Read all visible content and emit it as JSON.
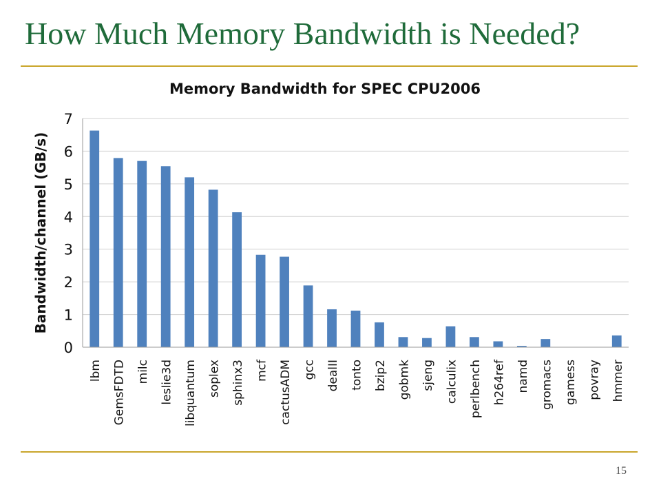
{
  "slide": {
    "title": "How Much Memory Bandwidth is Needed?",
    "page_number": "15"
  },
  "colors": {
    "title": "#1f6b3a",
    "rule": "#c9a52a",
    "bar": "#4f81bd",
    "grid": "#d0d0d0"
  },
  "chart_data": {
    "type": "bar",
    "title": "Memory Bandwidth for SPEC CPU2006",
    "xlabel": "",
    "ylabel": "Bandwidth/channel (GB/s)",
    "ylim": [
      0,
      7
    ],
    "yticks": [
      0,
      1,
      2,
      3,
      4,
      5,
      6,
      7
    ],
    "grid": true,
    "categories": [
      "lbm",
      "GemsFDTD",
      "milc",
      "leslie3d",
      "libquantum",
      "soplex",
      "sphinx3",
      "mcf",
      "cactusADM",
      "gcc",
      "dealII",
      "tonto",
      "bzip2",
      "gobmk",
      "sjeng",
      "calculix",
      "perlbench",
      "h264ref",
      "namd",
      "gromacs",
      "gamess",
      "povray",
      "hmmer"
    ],
    "values": [
      6.63,
      5.79,
      5.7,
      5.54,
      5.2,
      4.82,
      4.13,
      2.83,
      2.77,
      1.89,
      1.16,
      1.12,
      0.76,
      0.31,
      0.28,
      0.64,
      0.31,
      0.18,
      0.04,
      0.25,
      0.01,
      0.01,
      0.36
    ]
  }
}
